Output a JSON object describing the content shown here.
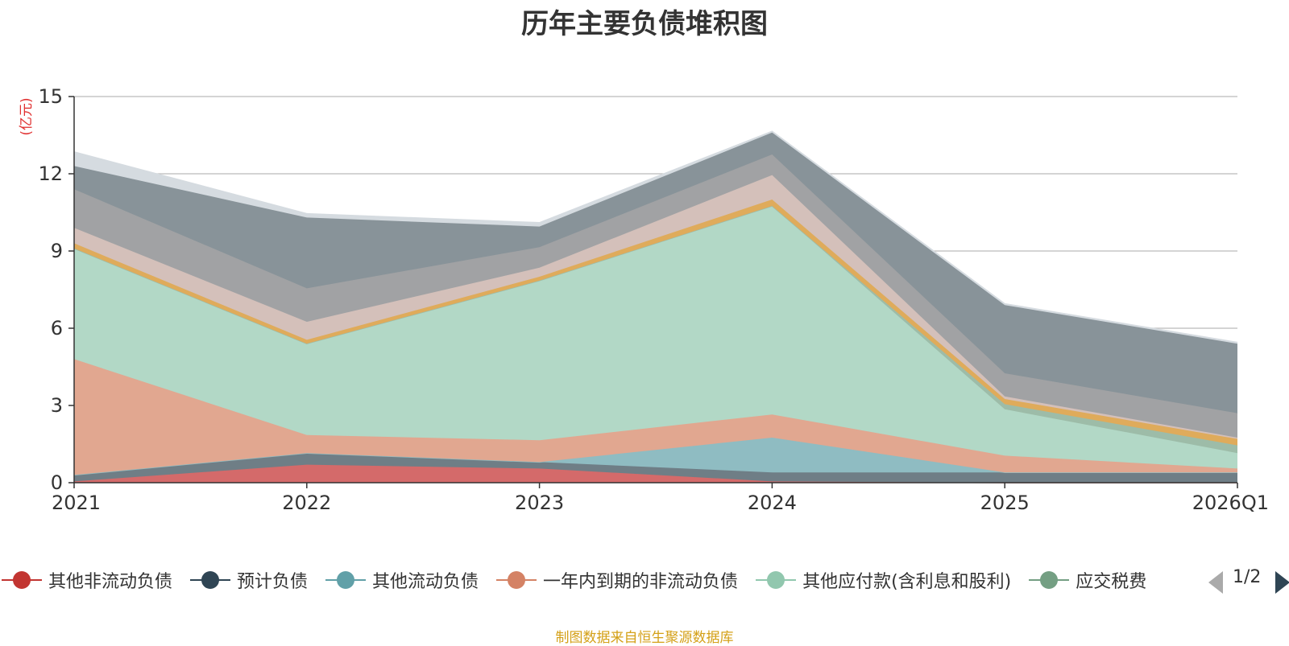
{
  "chart_data": {
    "type": "area",
    "title": "历年主要负债堆积图",
    "ylabel": "(亿元)",
    "categories": [
      "2021",
      "2022",
      "2023",
      "2024",
      "2025",
      "2026Q1"
    ],
    "ylim": [
      0,
      15
    ],
    "yticks": [
      0,
      3,
      6,
      9,
      12,
      15
    ],
    "grid": true,
    "legend_position": "bottom",
    "series": [
      {
        "name": "其他非流动负债",
        "color": "#c23531",
        "fill": "#d46a6a",
        "values": [
          0.05,
          0.7,
          0.55,
          0.05,
          0.0,
          0.0
        ]
      },
      {
        "name": "预计负债",
        "color": "#2f4554",
        "fill": "#6f7e86",
        "values": [
          0.25,
          0.45,
          0.25,
          0.35,
          0.4,
          0.4
        ]
      },
      {
        "name": "其他流动负债",
        "color": "#61a0a8",
        "fill": "#8fbcc2",
        "values": [
          0.0,
          0.0,
          0.0,
          1.35,
          0.0,
          0.0
        ]
      },
      {
        "name": "一年内到期的非流动负债",
        "color": "#d48265",
        "fill": "#e1a790",
        "values": [
          4.5,
          0.7,
          0.85,
          0.9,
          0.65,
          0.15
        ]
      },
      {
        "name": "其他应付款(含利息和股利)",
        "color": "#91c7ae",
        "fill": "#b2d8c6",
        "values": [
          4.3,
          3.55,
          6.2,
          8.1,
          1.8,
          0.6
        ]
      },
      {
        "name": "应交税费",
        "color": "#749f83",
        "fill": "#9dbca8",
        "values": [
          0.0,
          0.0,
          0.0,
          0.0,
          0.2,
          0.3
        ]
      },
      {
        "name": "",
        "color": "#ca8622",
        "fill": "#dfab5b",
        "values": [
          0.2,
          0.15,
          0.15,
          0.25,
          0.2,
          0.25
        ]
      },
      {
        "name": "",
        "color": "#bda29a",
        "fill": "#d4c0ba",
        "values": [
          0.6,
          0.7,
          0.35,
          0.95,
          0.1,
          0.05
        ]
      },
      {
        "name": "",
        "color": "#6e7074",
        "fill": "#a1a2a4",
        "values": [
          1.5,
          1.3,
          0.8,
          0.8,
          0.9,
          0.95
        ]
      },
      {
        "name": "",
        "color": "#546570",
        "fill": "#889399",
        "values": [
          0.9,
          2.75,
          0.8,
          0.85,
          2.65,
          2.7
        ]
      },
      {
        "name": "",
        "color": "#c4ccd3",
        "fill": "#d5dbe0",
        "values": [
          0.55,
          0.15,
          0.15,
          0.05,
          0.05,
          0.05
        ]
      }
    ]
  },
  "legend_page": "1/2",
  "source_note": "制图数据来自恒生聚源数据库"
}
